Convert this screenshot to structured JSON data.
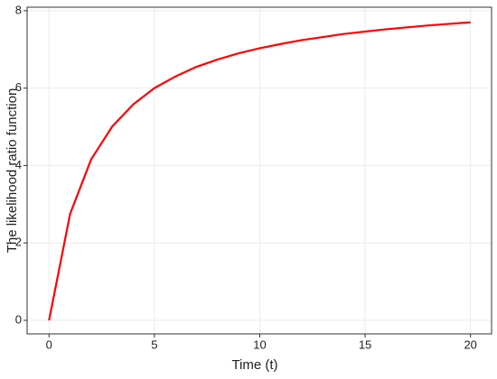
{
  "chart_data": {
    "type": "line",
    "x_label": "Time (t)",
    "y_label": "The likelihood ratio function",
    "x": [
      0,
      1,
      2,
      3,
      4,
      5,
      6,
      7,
      8,
      9,
      10,
      11,
      12,
      13,
      14,
      15,
      16,
      17,
      18,
      19,
      20
    ],
    "series": [
      {
        "color": "#ff0000",
        "values": [
          0,
          2.75,
          4.16,
          5.01,
          5.58,
          6.0,
          6.3,
          6.55,
          6.74,
          6.9,
          7.03,
          7.14,
          7.24,
          7.32,
          7.4,
          7.46,
          7.52,
          7.57,
          7.62,
          7.66,
          7.7
        ]
      }
    ],
    "xlim": [
      -1.04,
      21.0
    ],
    "ylim": [
      -0.35,
      8.09
    ],
    "xticks": [
      0,
      5,
      10,
      15,
      20
    ],
    "yticks": [
      0,
      2,
      4,
      6,
      8
    ],
    "grid": true
  }
}
